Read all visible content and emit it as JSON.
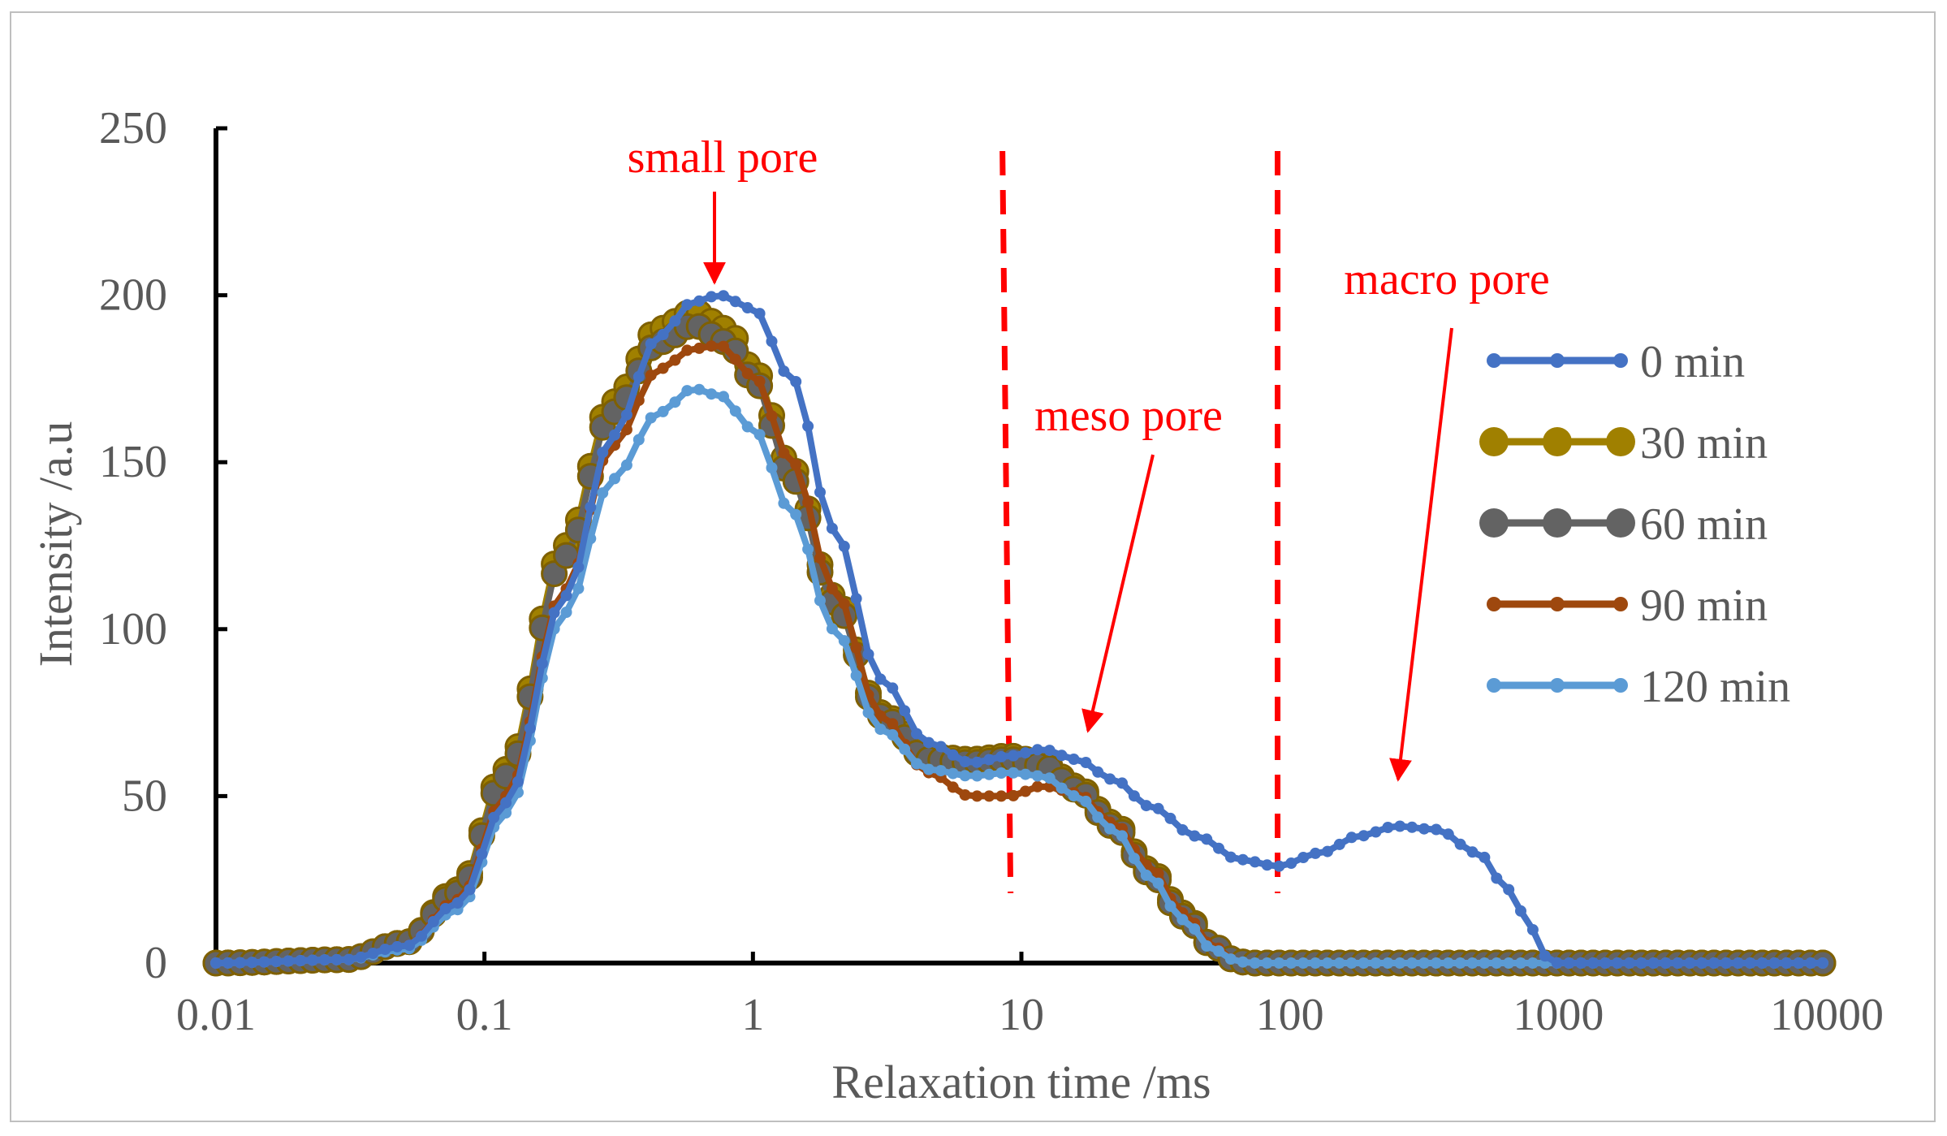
{
  "chart_data": {
    "type": "line",
    "title": "",
    "xlabel": "Relaxation time /ms",
    "ylabel": "Intensity /a.u",
    "x_scale": "log",
    "xlim": [
      0.01,
      10000
    ],
    "ylim": [
      0,
      250
    ],
    "x_ticks": [
      0.01,
      0.1,
      1,
      10,
      100,
      1000,
      10000
    ],
    "x_tick_labels": [
      "0.01",
      "0.1",
      "1",
      "10",
      "100",
      "1000",
      "10000"
    ],
    "y_ticks": [
      0,
      50,
      100,
      150,
      200,
      250
    ],
    "y_tick_labels": [
      "0",
      "50",
      "100",
      "150",
      "200",
      "250"
    ],
    "grid": false,
    "legend_position": "right",
    "series": [
      {
        "name": "0 min",
        "color": "#4472c4",
        "marker": "small",
        "x": [
          0.01,
          0.03,
          0.05,
          0.08,
          0.12,
          0.2,
          0.3,
          0.45,
          0.6,
          0.75,
          1.0,
          1.4,
          2.0,
          3.0,
          4.5,
          6.5,
          9,
          12,
          16,
          22,
          30,
          45,
          65,
          90,
          130,
          180,
          250,
          350,
          500,
          650,
          800,
          900,
          1000,
          2000,
          5000,
          10000
        ],
        "y": [
          0,
          1,
          5,
          18,
          48,
          110,
          158,
          188,
          198,
          200,
          196,
          175,
          130,
          85,
          66,
          60,
          62,
          64,
          61,
          55,
          47,
          38,
          31,
          29,
          33,
          38,
          41,
          40,
          33,
          22,
          10,
          2,
          0,
          0,
          0,
          0
        ]
      },
      {
        "name": "30 min",
        "color": "#a08000",
        "marker": "large",
        "x": [
          0.01,
          0.03,
          0.05,
          0.08,
          0.12,
          0.2,
          0.3,
          0.45,
          0.6,
          0.8,
          1.0,
          1.4,
          2.0,
          3.0,
          4.5,
          6.5,
          9,
          12,
          16,
          22,
          30,
          40,
          52,
          62,
          70,
          100,
          1000,
          10000
        ],
        "y": [
          0,
          1,
          6,
          22,
          58,
          125,
          168,
          190,
          195,
          190,
          178,
          148,
          110,
          75,
          62,
          61,
          62,
          60,
          53,
          42,
          28,
          15,
          5,
          1,
          0,
          0,
          0,
          0
        ]
      },
      {
        "name": "60 min",
        "color": "#636363",
        "marker": "large",
        "x": [
          0.01,
          0.03,
          0.05,
          0.08,
          0.12,
          0.2,
          0.3,
          0.45,
          0.6,
          0.8,
          1.0,
          1.4,
          2.0,
          3.0,
          4.5,
          6.5,
          9,
          12,
          16,
          22,
          30,
          40,
          52,
          62,
          70,
          100,
          1000,
          10000
        ],
        "y": [
          0,
          1,
          6,
          21,
          56,
          122,
          165,
          186,
          191,
          186,
          175,
          145,
          108,
          74,
          61,
          60,
          61,
          59,
          52,
          41,
          27,
          14,
          5,
          1,
          0,
          0,
          0,
          0
        ]
      },
      {
        "name": "90 min",
        "color": "#9e480e",
        "marker": "small",
        "x": [
          0.01,
          0.03,
          0.05,
          0.08,
          0.12,
          0.2,
          0.3,
          0.45,
          0.6,
          0.75,
          1.0,
          1.4,
          2.0,
          3.0,
          4.5,
          6.5,
          9,
          12,
          16,
          22,
          30,
          40,
          52,
          62,
          70,
          100,
          1000,
          10000
        ],
        "y": [
          0,
          1,
          5,
          19,
          50,
          112,
          155,
          178,
          184,
          185,
          176,
          150,
          112,
          74,
          57,
          50,
          50,
          53,
          51,
          42,
          29,
          15,
          5,
          1,
          0,
          0,
          0,
          0
        ]
      },
      {
        "name": "120 min",
        "color": "#5b9bd5",
        "marker": "small",
        "x": [
          0.01,
          0.03,
          0.05,
          0.08,
          0.12,
          0.2,
          0.3,
          0.45,
          0.6,
          0.75,
          1.0,
          1.4,
          2.0,
          3.0,
          4.5,
          6.5,
          9,
          12,
          16,
          22,
          30,
          40,
          52,
          62,
          70,
          100,
          1000,
          10000
        ],
        "y": [
          0,
          1,
          4,
          16,
          45,
          105,
          145,
          165,
          172,
          170,
          160,
          135,
          100,
          70,
          58,
          56,
          57,
          56,
          50,
          40,
          26,
          13,
          4,
          1,
          0,
          0,
          0,
          0
        ]
      }
    ],
    "annotations": {
      "small_pore": "small pore",
      "meso_pore": "meso pore",
      "macro_pore": "macro pore"
    },
    "divider_lines_x": [
      8.5,
      90
    ]
  }
}
